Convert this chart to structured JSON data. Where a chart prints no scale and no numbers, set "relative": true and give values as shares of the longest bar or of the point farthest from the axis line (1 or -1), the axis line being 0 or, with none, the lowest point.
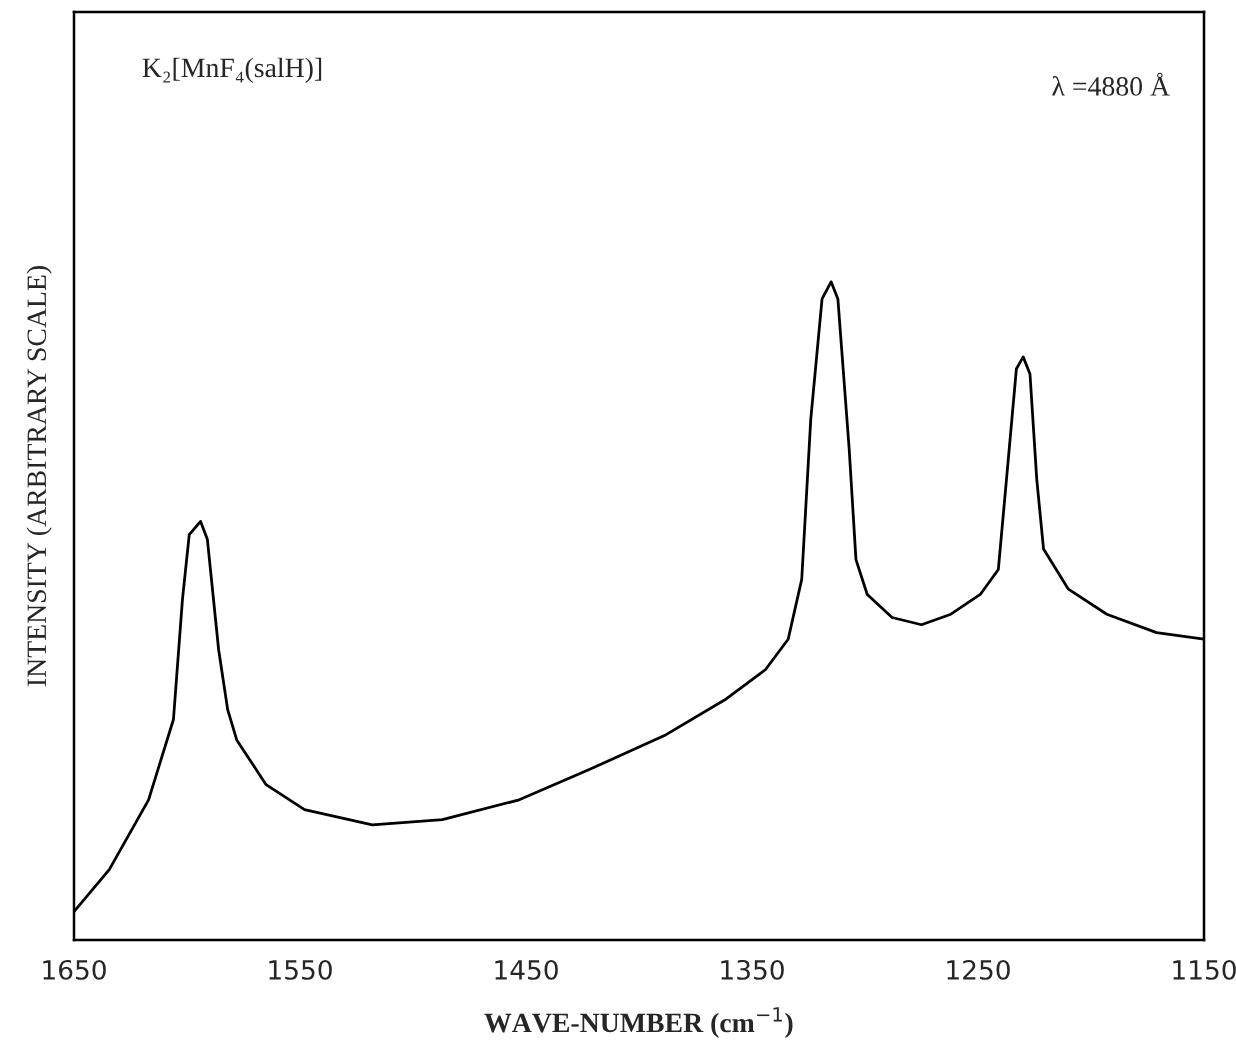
{
  "chart_data": {
    "type": "line",
    "relative": true,
    "xlabel": "WAVE-NUMBER (cm$^{−1}$)",
    "ylabel": "INTENSITY (ARBITRARY SCALE)",
    "annotations": [
      "K₂[MnF₄(salH)]",
      "λ =4880 Å"
    ],
    "xlim": [
      1650,
      1150
    ],
    "xticks": [
      1650,
      1550,
      1450,
      1350,
      1250,
      1150
    ],
    "grid": false,
    "legend": false,
    "marker": "none",
    "line_style": "solid",
    "series": [
      {
        "color": "#000000",
        "x": [
          1650,
          1634.4,
          1617,
          1606,
          1602,
          1599,
          1594,
          1591,
          1586,
          1582,
          1578,
          1565,
          1548,
          1518,
          1487,
          1453,
          1422,
          1388,
          1362,
          1344,
          1334,
          1328,
          1324,
          1319,
          1315,
          1312,
          1307,
          1304,
          1299,
          1288,
          1275,
          1262,
          1249,
          1241,
          1237,
          1233,
          1230,
          1227,
          1224,
          1221,
          1210,
          1193,
          1171,
          1150
        ],
        "values": [
          0.043,
          0.107,
          0.213,
          0.335,
          0.518,
          0.616,
          0.636,
          0.609,
          0.441,
          0.35,
          0.304,
          0.236,
          0.198,
          0.175,
          0.183,
          0.213,
          0.259,
          0.312,
          0.365,
          0.411,
          0.457,
          0.548,
          0.791,
          0.974,
          1.0,
          0.974,
          0.746,
          0.578,
          0.525,
          0.49,
          0.479,
          0.495,
          0.525,
          0.563,
          0.715,
          0.868,
          0.886,
          0.86,
          0.7,
          0.594,
          0.533,
          0.495,
          0.467,
          0.457
        ]
      }
    ]
  }
}
